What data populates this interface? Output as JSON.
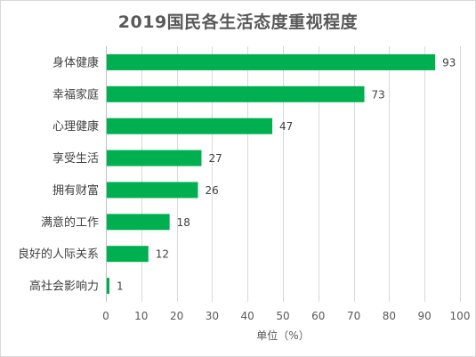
{
  "chart_data": {
    "type": "bar",
    "orientation": "horizontal",
    "title": "2019国民各生活态度重视程度",
    "categories": [
      "身体健康",
      "幸福家庭",
      "心理健康",
      "享受生活",
      "拥有财富",
      "满意的工作",
      "良好的人际关系",
      "高社会影响力"
    ],
    "values": [
      93,
      73,
      47,
      27,
      26,
      18,
      12,
      1
    ],
    "xlabel": "单位（%）",
    "xlim": [
      0,
      100
    ],
    "xticks": [
      0,
      10,
      20,
      30,
      40,
      50,
      60,
      70,
      80,
      90,
      100
    ],
    "grid": "vertical",
    "data_labels": true,
    "bar_color": "#00b050",
    "grid_color": "#d9d9d9"
  }
}
